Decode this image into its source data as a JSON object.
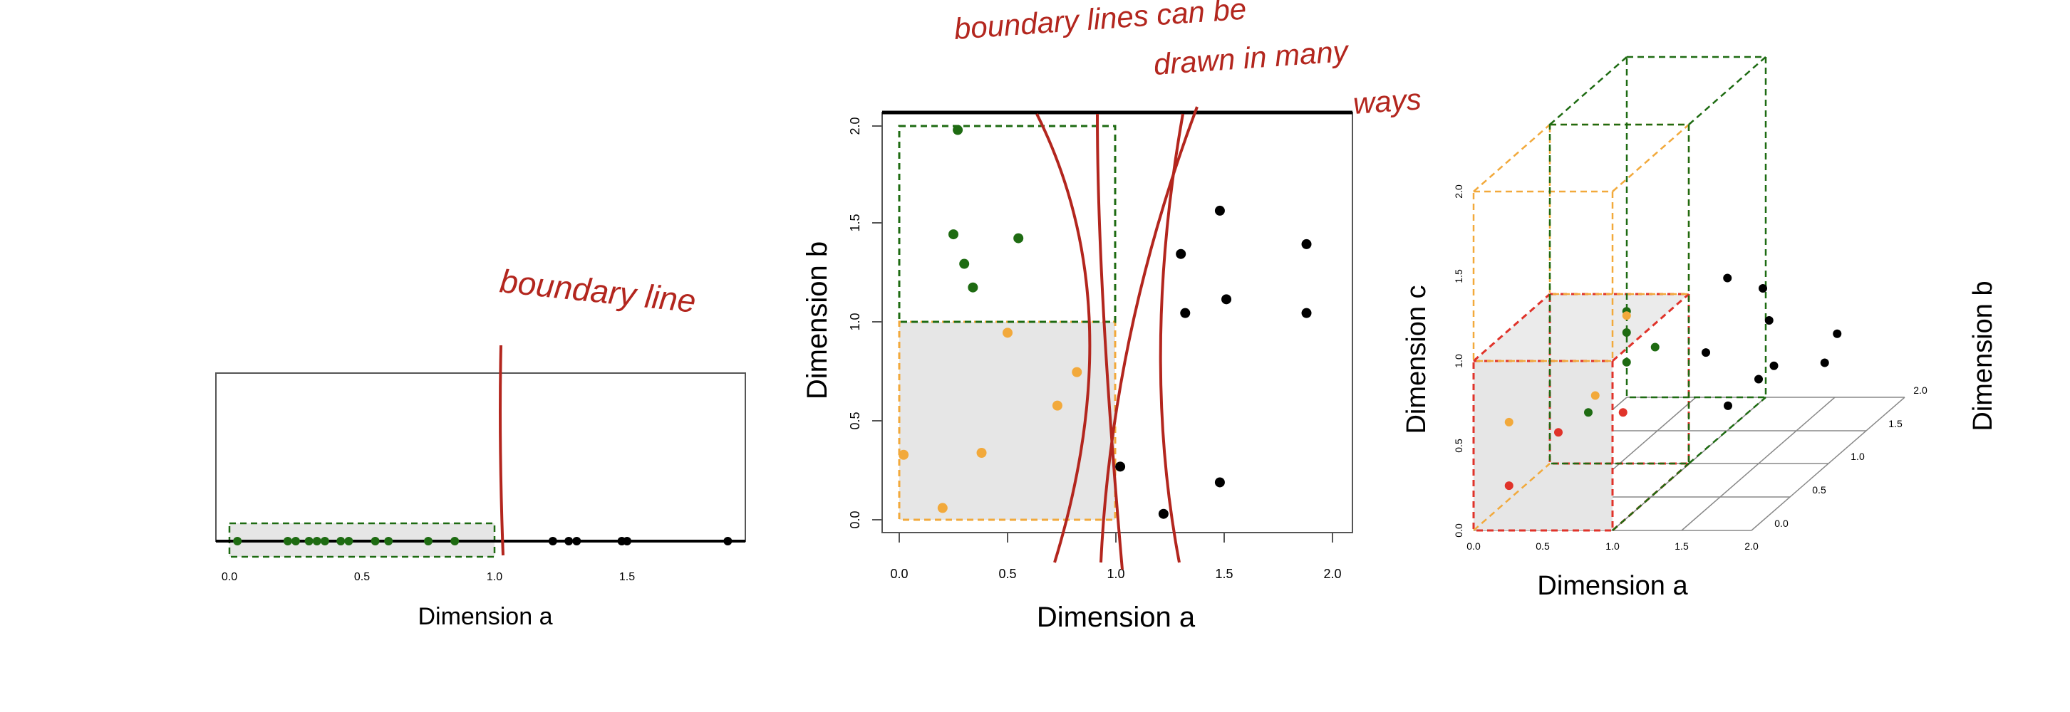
{
  "annotations": {
    "boundary_line": "boundary line",
    "many_ways": [
      "boundary lines can be",
      "drawn in many",
      "ways"
    ]
  },
  "panels": {
    "one_d": {
      "xlabel": "Dimension a",
      "ticks": [
        "0.0",
        "0.5",
        "1.0",
        "1.5"
      ]
    },
    "two_d": {
      "xlabel": "Dimension a",
      "ylabel": "Dimension b",
      "xticks": [
        "0.0",
        "0.5",
        "1.0",
        "1.5",
        "2.0"
      ],
      "yticks": [
        "0.0",
        "0.5",
        "1.0",
        "1.5",
        "2.0"
      ]
    },
    "three_d": {
      "xlabel": "Dimension a",
      "ylabel": "Dimension b",
      "zlabel": "Dimension c",
      "xticks": [
        "0.0",
        "0.5",
        "1.0",
        "1.5",
        "2.0"
      ],
      "yticks": [
        "0.0",
        "0.5",
        "1.0",
        "1.5",
        "2.0"
      ],
      "zticks": [
        "0.0",
        "0.5",
        "1.0",
        "1.5",
        "2.0"
      ]
    }
  },
  "colors": {
    "green": "#1e6b12",
    "orange": "#f2a93b",
    "red": "#e0332a",
    "black": "#000000",
    "shade": "#e6e6e6",
    "ink": "#b3261e"
  },
  "chart_data": [
    {
      "type": "scatter",
      "xlabel": "Dimension a",
      "xlim": [
        0,
        2.0
      ],
      "green_points": [
        0.03,
        0.22,
        0.25,
        0.3,
        0.33,
        0.36,
        0.42,
        0.45,
        0.55,
        0.6,
        0.75,
        0.85
      ],
      "black_points": [
        1.22,
        1.28,
        1.31,
        1.48,
        1.5,
        1.88
      ]
    },
    {
      "type": "scatter",
      "xlabel": "Dimension a",
      "ylabel": "Dimension b",
      "xlim": [
        0,
        2.0
      ],
      "ylim": [
        0,
        2.0
      ],
      "green_points": [
        [
          0.27,
          1.98
        ],
        [
          0.25,
          1.45
        ],
        [
          0.3,
          1.3
        ],
        [
          0.34,
          1.18
        ],
        [
          0.55,
          1.43
        ]
      ],
      "orange_points": [
        [
          0.02,
          0.33
        ],
        [
          0.5,
          0.95
        ],
        [
          0.82,
          0.75
        ],
        [
          0.73,
          0.58
        ],
        [
          0.38,
          0.34
        ],
        [
          0.2,
          0.06
        ]
      ],
      "black_points": [
        [
          1.48,
          1.57
        ],
        [
          1.32,
          1.05
        ],
        [
          1.3,
          1.35
        ],
        [
          1.51,
          1.12
        ],
        [
          1.88,
          1.4
        ],
        [
          1.88,
          1.05
        ],
        [
          1.02,
          0.27
        ],
        [
          1.22,
          0.03
        ],
        [
          1.48,
          0.19
        ]
      ]
    },
    {
      "type": "scatter",
      "xlabel": "Dimension a",
      "ylabel": "Dimension b",
      "zlabel": "Dimension c",
      "xlim": [
        0,
        2.0
      ],
      "ylim": [
        0,
        2.0
      ],
      "zlim": [
        0,
        2.0
      ],
      "green_points": [
        [
          0.55,
          1.0,
          1.8
        ],
        [
          0.55,
          1.0,
          1.55
        ],
        [
          0.7,
          1.1,
          1.3
        ],
        [
          0.55,
          1.0,
          1.2
        ],
        [
          0.55,
          0.5,
          1.0
        ]
      ],
      "orange_points": [
        [
          0.55,
          1.0,
          1.75
        ],
        [
          0.2,
          0.1,
          1.2
        ],
        [
          0.6,
          0.5,
          1.2
        ]
      ],
      "red_points": [
        [
          0.2,
          0.1,
          0.45
        ],
        [
          0.5,
          0.2,
          1.0
        ],
        [
          0.8,
          0.5,
          1.0
        ]
      ],
      "black_points": [
        [
          1.0,
          1.5,
          1.8
        ],
        [
          1.2,
          1.6,
          1.6
        ],
        [
          0.9,
          1.4,
          1.0
        ],
        [
          1.3,
          1.5,
          1.3
        ],
        [
          1.5,
          1.2,
          1.0
        ],
        [
          1.5,
          1.0,
          1.0
        ],
        [
          1.7,
          1.5,
          0.8
        ],
        [
          1.9,
          1.3,
          1.3
        ],
        [
          1.5,
          0.6,
          1.0
        ]
      ]
    }
  ]
}
